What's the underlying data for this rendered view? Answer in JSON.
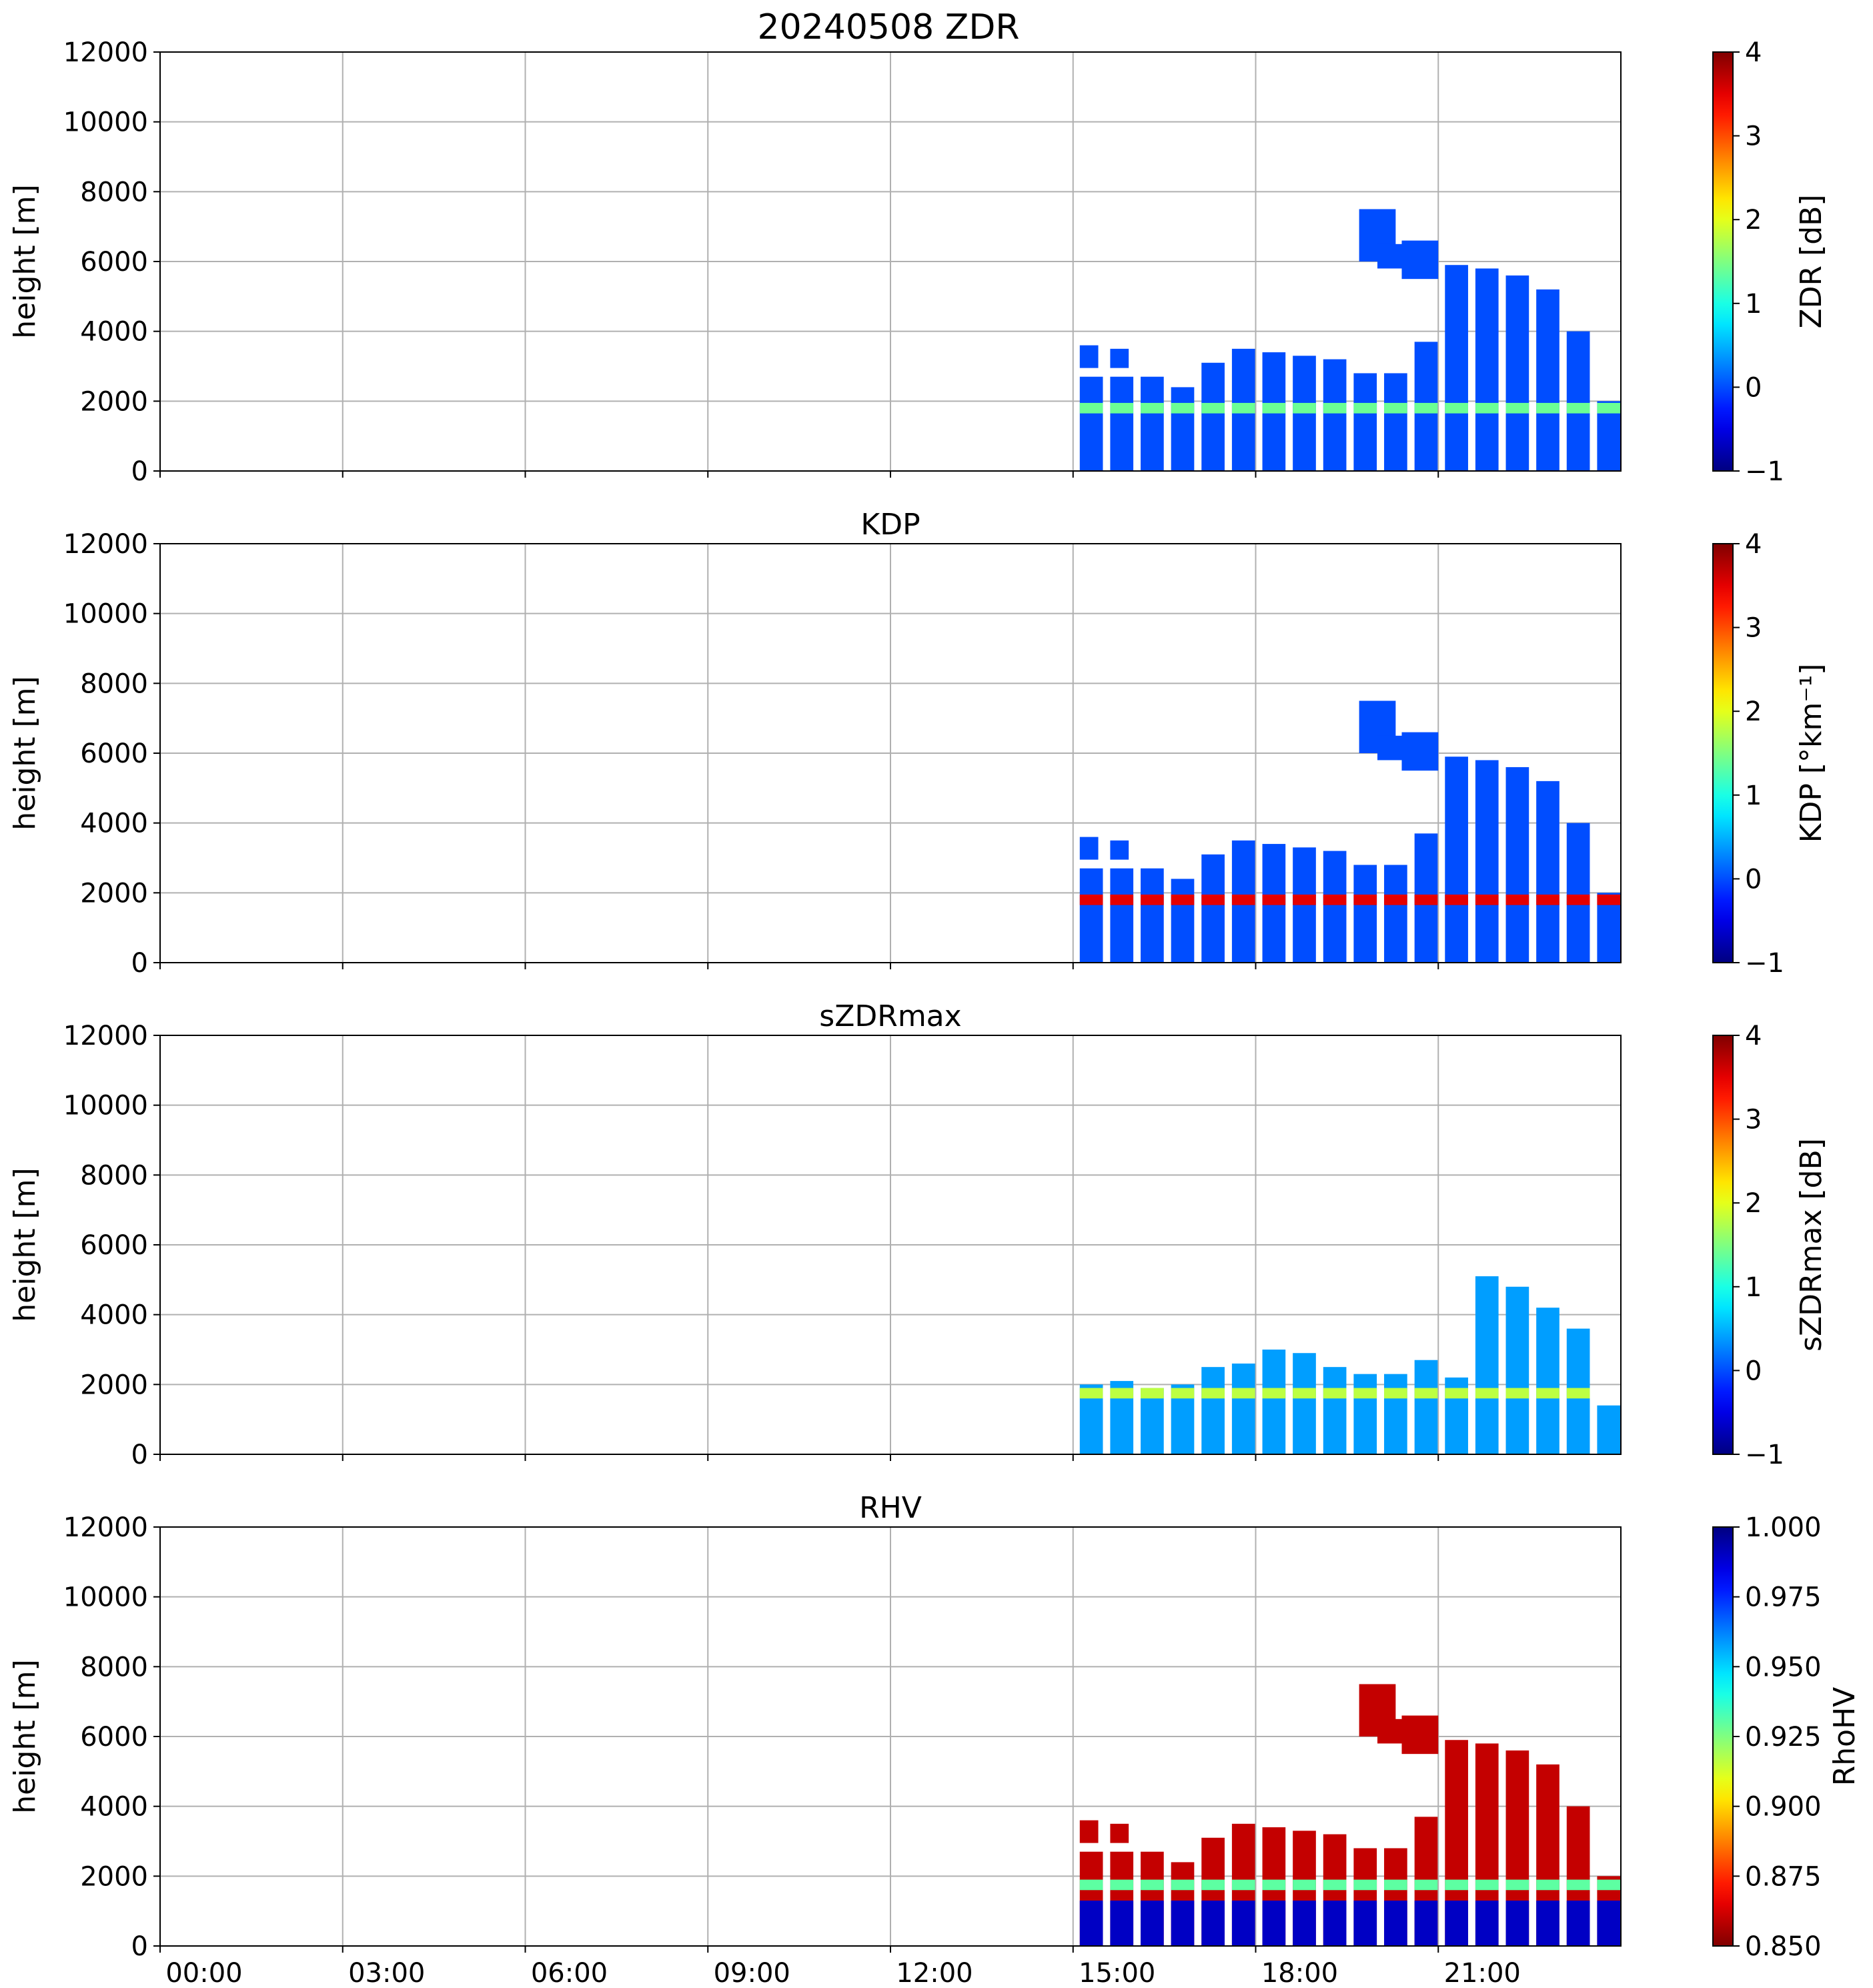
{
  "figure_title": "20240508 ZDR",
  "chart_data": [
    {
      "type": "heatmap",
      "title": "20240508 ZDR",
      "xlabel": "",
      "ylabel": "height [m]",
      "xlim_hours": [
        0,
        24
      ],
      "ylim": [
        0,
        12000
      ],
      "yticks": [
        0,
        2000,
        4000,
        6000,
        8000,
        10000,
        12000
      ],
      "xtick_hours": [
        0,
        3,
        6,
        9,
        12,
        15,
        18,
        21
      ],
      "xtick_labels": [],
      "grid": true,
      "colorbar": {
        "label": "ZDR [dB]",
        "min": -1,
        "max": 4,
        "ticks": [
          -1,
          0,
          1,
          2,
          3,
          4
        ],
        "tick_labels": [
          "−1",
          "0",
          "1",
          "2",
          "3",
          "4"
        ],
        "colormap": "jet",
        "reversed": false
      },
      "scans": [
        {
          "t": 15.3,
          "top": 2700,
          "echo_top": 3600
        },
        {
          "t": 15.8,
          "top": 2700,
          "echo_top": 3500
        },
        {
          "t": 16.3,
          "top": 2700
        },
        {
          "t": 16.8,
          "top": 2400
        },
        {
          "t": 17.3,
          "top": 3100
        },
        {
          "t": 17.8,
          "top": 3500
        },
        {
          "t": 18.3,
          "top": 3400
        },
        {
          "t": 18.8,
          "top": 3300
        },
        {
          "t": 19.3,
          "top": 3200
        },
        {
          "t": 19.8,
          "top": 2800
        },
        {
          "t": 20.3,
          "top": 2800
        },
        {
          "t": 20.8,
          "top": 3700
        },
        {
          "t": 21.3,
          "top": 5900
        },
        {
          "t": 21.8,
          "top": 5800
        },
        {
          "t": 22.3,
          "top": 5600
        },
        {
          "t": 22.8,
          "top": 5200
        },
        {
          "t": 23.3,
          "top": 4000
        },
        {
          "t": 23.8,
          "top": 2000
        }
      ],
      "melting_layer_m": 1800,
      "bulk_value": 0.0,
      "ml_value": 1.4,
      "high_cloud": [
        {
          "t0": 19.7,
          "t1": 20.3,
          "h0": 6000,
          "h1": 7500
        },
        {
          "t0": 20.0,
          "t1": 20.6,
          "h0": 5800,
          "h1": 6500
        },
        {
          "t0": 20.4,
          "t1": 21.0,
          "h0": 5500,
          "h1": 6600
        }
      ]
    },
    {
      "type": "heatmap",
      "title": "KDP",
      "xlabel": "",
      "ylabel": "height [m]",
      "xlim_hours": [
        0,
        24
      ],
      "ylim": [
        0,
        12000
      ],
      "yticks": [
        0,
        2000,
        4000,
        6000,
        8000,
        10000,
        12000
      ],
      "xtick_hours": [
        0,
        3,
        6,
        9,
        12,
        15,
        18,
        21
      ],
      "xtick_labels": [],
      "grid": true,
      "colorbar": {
        "label": "KDP [°km⁻¹]",
        "min": -1,
        "max": 4,
        "ticks": [
          -1,
          0,
          1,
          2,
          3,
          4
        ],
        "tick_labels": [
          "−1",
          "0",
          "1",
          "2",
          "3",
          "4"
        ],
        "colormap": "jet",
        "reversed": false
      },
      "scans": [
        {
          "t": 15.3,
          "top": 2700,
          "echo_top": 3600
        },
        {
          "t": 15.8,
          "top": 2700,
          "echo_top": 3500
        },
        {
          "t": 16.3,
          "top": 2700
        },
        {
          "t": 16.8,
          "top": 2400
        },
        {
          "t": 17.3,
          "top": 3100
        },
        {
          "t": 17.8,
          "top": 3500
        },
        {
          "t": 18.3,
          "top": 3400
        },
        {
          "t": 18.8,
          "top": 3300
        },
        {
          "t": 19.3,
          "top": 3200
        },
        {
          "t": 19.8,
          "top": 2800
        },
        {
          "t": 20.3,
          "top": 2800
        },
        {
          "t": 20.8,
          "top": 3700
        },
        {
          "t": 21.3,
          "top": 5900
        },
        {
          "t": 21.8,
          "top": 5800
        },
        {
          "t": 22.3,
          "top": 5600
        },
        {
          "t": 22.8,
          "top": 5200
        },
        {
          "t": 23.3,
          "top": 4000
        },
        {
          "t": 23.8,
          "top": 2000
        }
      ],
      "melting_layer_m": 1800,
      "bulk_value": 0.0,
      "ml_value": 3.5,
      "high_cloud": [
        {
          "t0": 19.7,
          "t1": 20.3,
          "h0": 6000,
          "h1": 7500
        },
        {
          "t0": 20.0,
          "t1": 20.6,
          "h0": 5800,
          "h1": 6500
        },
        {
          "t0": 20.4,
          "t1": 21.0,
          "h0": 5500,
          "h1": 6600
        }
      ]
    },
    {
      "type": "heatmap",
      "title": "sZDRmax",
      "xlabel": "",
      "ylabel": "height [m]",
      "xlim_hours": [
        0,
        24
      ],
      "ylim": [
        0,
        12000
      ],
      "yticks": [
        0,
        2000,
        4000,
        6000,
        8000,
        10000,
        12000
      ],
      "xtick_hours": [
        0,
        3,
        6,
        9,
        12,
        15,
        18,
        21
      ],
      "xtick_labels": [],
      "grid": true,
      "colorbar": {
        "label": "sZDRmax [dB]",
        "min": -1,
        "max": 4,
        "ticks": [
          -1,
          0,
          1,
          2,
          3,
          4
        ],
        "tick_labels": [
          "−1",
          "0",
          "1",
          "2",
          "3",
          "4"
        ],
        "colormap": "jet",
        "reversed": false
      },
      "scans": [
        {
          "t": 15.3,
          "top": 2000
        },
        {
          "t": 15.8,
          "top": 2100
        },
        {
          "t": 16.3,
          "top": 1900
        },
        {
          "t": 16.8,
          "top": 2000
        },
        {
          "t": 17.3,
          "top": 2500
        },
        {
          "t": 17.8,
          "top": 2600
        },
        {
          "t": 18.3,
          "top": 3000
        },
        {
          "t": 18.8,
          "top": 2900
        },
        {
          "t": 19.3,
          "top": 2500
        },
        {
          "t": 19.8,
          "top": 2300
        },
        {
          "t": 20.3,
          "top": 2300
        },
        {
          "t": 20.8,
          "top": 2700
        },
        {
          "t": 21.3,
          "top": 2200
        },
        {
          "t": 21.8,
          "top": 5100
        },
        {
          "t": 22.3,
          "top": 4800
        },
        {
          "t": 22.8,
          "top": 4200
        },
        {
          "t": 23.3,
          "top": 3600
        },
        {
          "t": 23.8,
          "top": 1400
        }
      ],
      "melting_layer_m": 1750,
      "bulk_value": 0.4,
      "ml_value": 1.8,
      "high_cloud": []
    },
    {
      "type": "heatmap",
      "title": "RHV",
      "xlabel": "",
      "ylabel": "height [m]",
      "xlim_hours": [
        0,
        24
      ],
      "ylim": [
        0,
        12000
      ],
      "yticks": [
        0,
        2000,
        4000,
        6000,
        8000,
        10000,
        12000
      ],
      "xtick_hours": [
        0,
        3,
        6,
        9,
        12,
        15,
        18,
        21
      ],
      "xtick_labels": [
        "00:00",
        "03:00",
        "06:00",
        "09:00",
        "12:00",
        "15:00",
        "18:00",
        "21:00"
      ],
      "grid": true,
      "colorbar": {
        "label": "RhoHV",
        "min": 0.85,
        "max": 1.0,
        "ticks": [
          0.85,
          0.875,
          0.9,
          0.925,
          0.95,
          0.975,
          1.0
        ],
        "tick_labels": [
          "0.850",
          "0.875",
          "0.900",
          "0.925",
          "0.950",
          "0.975",
          "1.000"
        ],
        "colormap": "jet",
        "reversed": true
      },
      "scans": [
        {
          "t": 15.3,
          "top": 2700,
          "echo_top": 3600
        },
        {
          "t": 15.8,
          "top": 2700,
          "echo_top": 3500
        },
        {
          "t": 16.3,
          "top": 2700
        },
        {
          "t": 16.8,
          "top": 2400
        },
        {
          "t": 17.3,
          "top": 3100
        },
        {
          "t": 17.8,
          "top": 3500
        },
        {
          "t": 18.3,
          "top": 3400
        },
        {
          "t": 18.8,
          "top": 3300
        },
        {
          "t": 19.3,
          "top": 3200
        },
        {
          "t": 19.8,
          "top": 2800
        },
        {
          "t": 20.3,
          "top": 2800
        },
        {
          "t": 20.8,
          "top": 3700
        },
        {
          "t": 21.3,
          "top": 5900
        },
        {
          "t": 21.8,
          "top": 5800
        },
        {
          "t": 22.3,
          "top": 5600
        },
        {
          "t": 22.8,
          "top": 5200
        },
        {
          "t": 23.3,
          "top": 4000
        },
        {
          "t": 23.8,
          "top": 2000
        }
      ],
      "melting_layer_m": 1750,
      "bulk_value": 0.86,
      "low_value": 0.99,
      "ml_value": 0.93,
      "high_cloud": [
        {
          "t0": 19.7,
          "t1": 20.3,
          "h0": 6000,
          "h1": 7500
        },
        {
          "t0": 20.0,
          "t1": 20.6,
          "h0": 5800,
          "h1": 6500
        },
        {
          "t0": 20.4,
          "t1": 21.0,
          "h0": 5500,
          "h1": 6600
        }
      ]
    }
  ]
}
